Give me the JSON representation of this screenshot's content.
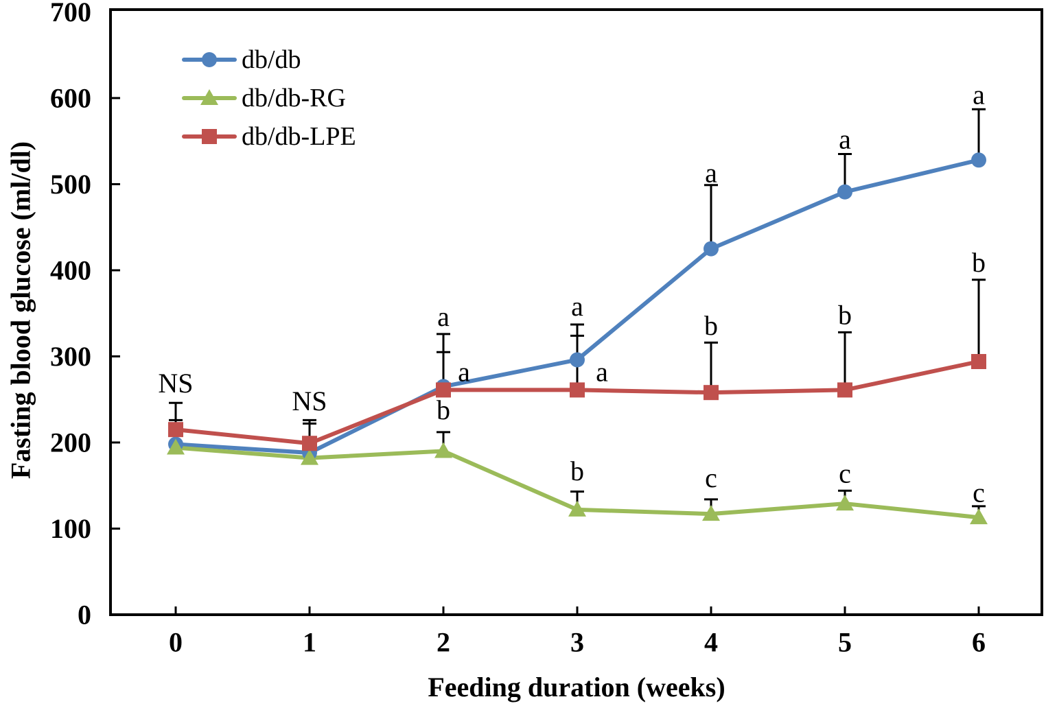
{
  "chart_data": {
    "type": "line",
    "xlabel": "Feeding duration (weeks)",
    "ylabel": "Fasting blood glucose (ml/dl)",
    "categories": [
      "0",
      "1",
      "2",
      "3",
      "4",
      "5",
      "6"
    ],
    "x": [
      0,
      1,
      2,
      3,
      4,
      5,
      6
    ],
    "ylim": [
      0,
      700
    ],
    "yticks": [
      0,
      100,
      200,
      300,
      400,
      500,
      600,
      700
    ],
    "grid": false,
    "legend_position": "top-left-inside",
    "axis_color": "#000000",
    "error_bar_color": "#000000",
    "series": [
      {
        "name": "db/db",
        "color": "#4F81BD",
        "marker": "circle",
        "values": [
          198,
          188,
          265,
          296,
          425,
          491,
          528
        ],
        "errors_up": [
          28,
          34,
          61,
          41,
          74,
          44,
          59
        ]
      },
      {
        "name": "db/db-RG",
        "color": "#9BBB59",
        "marker": "triangle",
        "values": [
          194,
          182,
          190,
          122,
          117,
          129,
          113
        ],
        "errors_up": [
          0,
          0,
          22,
          21,
          17,
          15,
          13
        ]
      },
      {
        "name": "db/db-LPE",
        "color": "#C0504D",
        "marker": "square",
        "values": [
          215,
          199,
          261,
          261,
          258,
          261,
          294
        ],
        "errors_up": [
          31,
          27,
          44,
          63,
          58,
          67,
          95
        ]
      }
    ],
    "annotations": [
      {
        "week": 0,
        "text": "NS",
        "value": 269,
        "dx": 0
      },
      {
        "week": 1,
        "text": "NS",
        "value": 248,
        "dx": 0
      },
      {
        "week": 2,
        "text": "a",
        "value": 346,
        "dx": 0
      },
      {
        "week": 2,
        "text": "a",
        "value": 282,
        "dx": 30
      },
      {
        "week": 2,
        "text": "b",
        "value": 238,
        "dx": 0
      },
      {
        "week": 3,
        "text": "a",
        "value": 358,
        "dx": 0
      },
      {
        "week": 3,
        "text": "a",
        "value": 282,
        "dx": 36
      },
      {
        "week": 3,
        "text": "b",
        "value": 167,
        "dx": 0
      },
      {
        "week": 4,
        "text": "a",
        "value": 513,
        "dx": 0
      },
      {
        "week": 4,
        "text": "b",
        "value": 336,
        "dx": 0
      },
      {
        "week": 4,
        "text": "c",
        "value": 159,
        "dx": 0
      },
      {
        "week": 5,
        "text": "a",
        "value": 552,
        "dx": 0
      },
      {
        "week": 5,
        "text": "b",
        "value": 348,
        "dx": 0
      },
      {
        "week": 5,
        "text": "c",
        "value": 164,
        "dx": 0
      },
      {
        "week": 6,
        "text": "a",
        "value": 604,
        "dx": 0
      },
      {
        "week": 6,
        "text": "b",
        "value": 409,
        "dx": 0
      },
      {
        "week": 6,
        "text": "c",
        "value": 142,
        "dx": 0
      }
    ]
  }
}
